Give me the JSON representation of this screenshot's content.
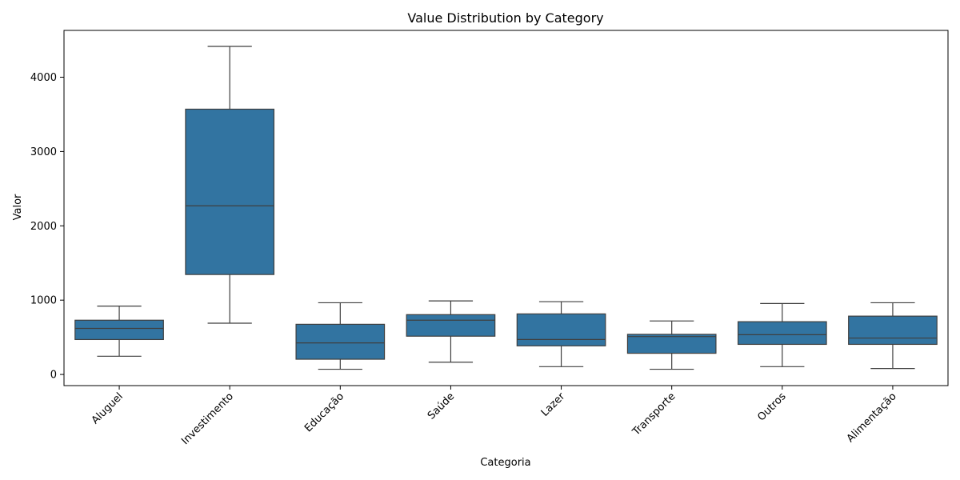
{
  "chart_data": {
    "type": "box",
    "title": "Value Distribution by Category",
    "xlabel": "Categoria",
    "ylabel": "Valor",
    "ylim": [
      -150,
      4630
    ],
    "yticks": [
      0,
      1000,
      2000,
      3000,
      4000
    ],
    "grid": false,
    "box_color": "#3274a1",
    "line_color": "#3f3f3f",
    "categories": [
      "Aluguel",
      "Investimento",
      "Educação",
      "Saúde",
      "Lazer",
      "Transporte",
      "Outros",
      "Alimentação"
    ],
    "boxes": [
      {
        "category": "Aluguel",
        "whisker_low": 245,
        "q1": 470,
        "median": 620,
        "q3": 730,
        "whisker_high": 920
      },
      {
        "category": "Investimento",
        "whisker_low": 690,
        "q1": 1345,
        "median": 2270,
        "q3": 3570,
        "whisker_high": 4415
      },
      {
        "category": "Educação",
        "whisker_low": 70,
        "q1": 205,
        "median": 425,
        "q3": 675,
        "whisker_high": 965
      },
      {
        "category": "Saúde",
        "whisker_low": 165,
        "q1": 515,
        "median": 730,
        "q3": 805,
        "whisker_high": 990
      },
      {
        "category": "Lazer",
        "whisker_low": 105,
        "q1": 385,
        "median": 470,
        "q3": 815,
        "whisker_high": 980
      },
      {
        "category": "Transporte",
        "whisker_low": 70,
        "q1": 285,
        "median": 510,
        "q3": 540,
        "whisker_high": 720
      },
      {
        "category": "Outros",
        "whisker_low": 105,
        "q1": 405,
        "median": 535,
        "q3": 710,
        "whisker_high": 955
      },
      {
        "category": "Alimentação",
        "whisker_low": 80,
        "q1": 405,
        "median": 490,
        "q3": 785,
        "whisker_high": 965
      }
    ]
  }
}
